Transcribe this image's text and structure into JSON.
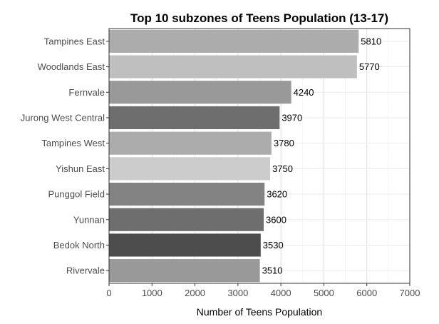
{
  "chart_data": {
    "type": "bar",
    "orientation": "horizontal",
    "title": "Top 10 subzones of Teens Population (13-17)",
    "xlabel": "Number of Teens Population",
    "ylabel": "",
    "xlim": [
      0,
      7000
    ],
    "x_ticks": [
      0,
      1000,
      2000,
      3000,
      4000,
      5000,
      6000,
      7000
    ],
    "categories": [
      "Tampines East",
      "Woodlands East",
      "Fernvale",
      "Jurong West Central",
      "Tampines West",
      "Yishun East",
      "Punggol Field",
      "Yunnan",
      "Bedok North",
      "Rivervale"
    ],
    "values": [
      5810,
      5770,
      4240,
      3970,
      3780,
      3750,
      3620,
      3600,
      3530,
      3510
    ],
    "bar_colors": [
      "#acacac",
      "#bfbfbf",
      "#999999",
      "#6e6e6e",
      "#acacac",
      "#cccccc",
      "#838383",
      "#6e6e6e",
      "#4d4d4d",
      "#999999"
    ],
    "data_labels": [
      "5810",
      "5770",
      "4240",
      "3970",
      "3780",
      "3750",
      "3620",
      "3600",
      "3530",
      "3510"
    ],
    "grid": true,
    "legend": "none"
  }
}
